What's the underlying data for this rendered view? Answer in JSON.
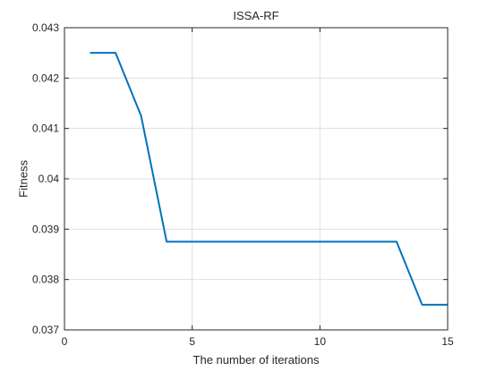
{
  "chart_data": {
    "type": "line",
    "title": "ISSA-RF",
    "xlabel": "The number of iterations",
    "ylabel": "Fitness",
    "xlim": [
      0,
      15
    ],
    "ylim": [
      0.037,
      0.043
    ],
    "xticks": [
      0,
      5,
      10,
      15
    ],
    "xtick_labels": [
      "0",
      "5",
      "10",
      "15"
    ],
    "yticks": [
      0.037,
      0.038,
      0.039,
      0.04,
      0.041,
      0.042,
      0.043
    ],
    "ytick_labels": [
      "0.037",
      "0.038",
      "0.039",
      "0.04",
      "0.041",
      "0.042",
      "0.043"
    ],
    "grid": true,
    "series": [
      {
        "color": "#0072BD",
        "x": [
          1,
          2,
          3,
          4,
          5,
          6,
          7,
          8,
          9,
          10,
          11,
          12,
          13,
          14,
          15
        ],
        "y": [
          0.0425,
          0.0425,
          0.04125,
          0.03875,
          0.03875,
          0.03875,
          0.03875,
          0.03875,
          0.03875,
          0.03875,
          0.03875,
          0.03875,
          0.03875,
          0.0375,
          0.0375
        ]
      }
    ]
  }
}
